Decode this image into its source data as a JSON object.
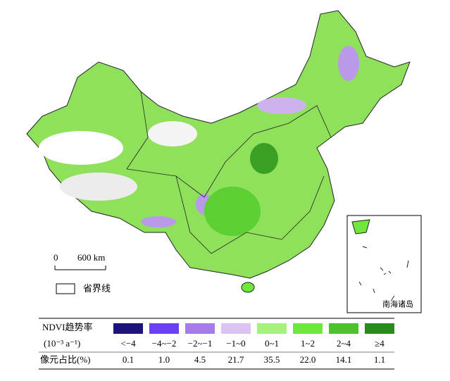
{
  "map": {
    "scale_bar": {
      "start": "0",
      "label": "600 km"
    },
    "boundary_legend": "省界线",
    "inset_label": "南海诸岛"
  },
  "legend": {
    "title": "NDVI趋势率",
    "unit": "(10⁻³ a⁻¹)",
    "row_label": "像元占比(%)",
    "classes": [
      {
        "label": "<−4",
        "color": "#1c1478",
        "share": "0.1"
      },
      {
        "label": "−4~−2",
        "color": "#6b40f2",
        "share": "1.0"
      },
      {
        "label": "−2~−1",
        "color": "#a77ce8",
        "share": "4.5"
      },
      {
        "label": "−1~0",
        "color": "#dcc4f2",
        "share": "21.7"
      },
      {
        "label": "0~1",
        "color": "#a6f07c",
        "share": "35.5"
      },
      {
        "label": "1~2",
        "color": "#6fe83c",
        "share": "22.0"
      },
      {
        "label": "2~4",
        "color": "#4dc22e",
        "share": "14.1"
      },
      {
        "label": "≥4",
        "color": "#2a8a1e",
        "share": "1.1"
      }
    ]
  }
}
